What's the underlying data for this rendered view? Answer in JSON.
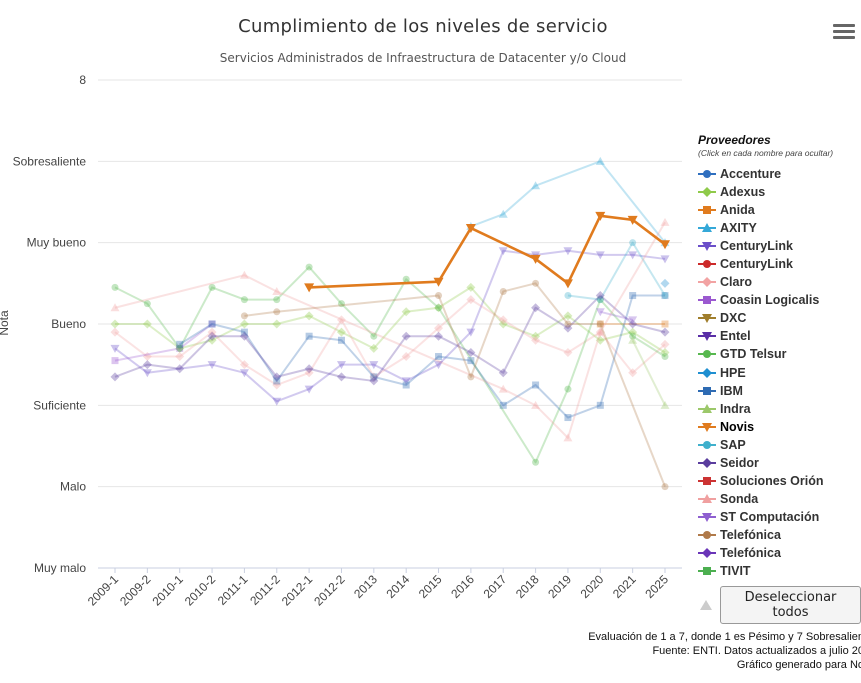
{
  "chart_title": "Cumplimiento de los niveles de servicio",
  "chart_subtitle": "Servicios Administrados de Infraestructura de Datacenter y/o Cloud",
  "menu_icon": "hamburger-menu-icon",
  "legend": {
    "title": "Proveedores",
    "subtitle": "(Click en cada nombre para ocultar)"
  },
  "deselect_button": "Deseleccionar todos",
  "footer": {
    "line1": "Evaluación de 1 a 7, donde 1 es Pésimo y 7 Sobresalien",
    "line2": "Fuente: ENTI. Datos actualizados a julio 20",
    "line3": "Gráfico generado para No"
  },
  "chart_data": {
    "type": "line",
    "ylabel": "Nota",
    "ylim": [
      1,
      7
    ],
    "ytick_labels": [
      "Muy malo",
      "Malo",
      "Suficiente",
      "Bueno",
      "Muy bueno",
      "Sobresaliente",
      "8"
    ],
    "categories": [
      "2009-1",
      "2009-2",
      "2010-1",
      "2010-2",
      "2011-1",
      "2011-2",
      "2012-1",
      "2012-2",
      "2013",
      "2014",
      "2015",
      "2016",
      "2017",
      "2018",
      "2019",
      "2020",
      "2021",
      "2025"
    ],
    "highlighted_series": "Novis",
    "series": [
      {
        "name": "Accenture",
        "color": "#2f6fbf",
        "marker": "circle",
        "values": [
          null,
          null,
          null,
          null,
          null,
          null,
          null,
          null,
          null,
          null,
          null,
          null,
          null,
          null,
          null,
          null,
          null,
          null
        ]
      },
      {
        "name": "Adexus",
        "color": "#8fca4a",
        "marker": "diamond",
        "values": [
          4.0,
          4.0,
          3.7,
          3.8,
          4.0,
          4.0,
          4.1,
          3.9,
          3.7,
          4.15,
          4.2,
          4.45,
          4.0,
          3.85,
          4.1,
          3.8,
          3.9,
          3.65
        ]
      },
      {
        "name": "Anida",
        "color": "#e07b1e",
        "marker": "square",
        "values": [
          null,
          null,
          null,
          null,
          null,
          null,
          null,
          null,
          null,
          null,
          null,
          null,
          null,
          null,
          null,
          4.0,
          null,
          4.0
        ]
      },
      {
        "name": "AXITY",
        "color": "#34a8d8",
        "marker": "triangle",
        "values": [
          null,
          null,
          null,
          null,
          null,
          null,
          null,
          null,
          null,
          null,
          null,
          5.2,
          5.35,
          5.7,
          null,
          6.0,
          null,
          5.0
        ]
      },
      {
        "name": "CenturyLink",
        "color": "#6b4fc9",
        "marker": "triangle-down",
        "values": [
          3.7,
          3.4,
          null,
          3.5,
          3.4,
          3.05,
          3.2,
          3.5,
          3.5,
          3.3,
          3.5,
          3.9,
          4.9,
          4.85,
          4.9,
          4.85,
          4.85,
          4.8
        ]
      },
      {
        "name": "CenturyLink",
        "color": "#cc2a2a",
        "marker": "circle",
        "values": [
          null,
          null,
          null,
          null,
          null,
          null,
          null,
          null,
          null,
          null,
          null,
          null,
          null,
          null,
          null,
          null,
          null,
          null
        ]
      },
      {
        "name": "Claro",
        "color": "#f2a3a3",
        "marker": "diamond",
        "values": [
          3.9,
          3.6,
          3.6,
          3.9,
          3.5,
          3.25,
          3.4,
          4.05,
          3.35,
          3.6,
          3.95,
          4.3,
          4.05,
          3.8,
          3.65,
          3.9,
          3.4,
          3.75
        ]
      },
      {
        "name": "Coasin Logicalis",
        "color": "#9b59d0",
        "marker": "square",
        "values": [
          3.55,
          null,
          3.7,
          4.0,
          null,
          null,
          null,
          null,
          null,
          null,
          null,
          null,
          null,
          null,
          null,
          null,
          null,
          null
        ]
      },
      {
        "name": "DXC",
        "color": "#a07e2c",
        "marker": "triangle-down",
        "values": [
          null,
          null,
          null,
          null,
          null,
          null,
          null,
          null,
          null,
          null,
          null,
          null,
          null,
          null,
          null,
          null,
          null,
          null
        ]
      },
      {
        "name": "Entel",
        "color": "#5a2ea6",
        "marker": "triangle-down",
        "values": [
          null,
          null,
          null,
          null,
          null,
          null,
          null,
          null,
          null,
          null,
          null,
          null,
          null,
          null,
          null,
          null,
          null,
          null
        ]
      },
      {
        "name": "GTD Telsur",
        "color": "#57b84f",
        "marker": "circle",
        "values": [
          4.45,
          4.25,
          3.7,
          4.45,
          4.3,
          4.3,
          4.7,
          4.25,
          3.85,
          4.55,
          4.2,
          null,
          null,
          2.3,
          3.2,
          4.3,
          3.85,
          3.6
        ]
      },
      {
        "name": "HPE",
        "color": "#1f8fd1",
        "marker": "diamond",
        "values": [
          null,
          null,
          null,
          null,
          null,
          null,
          null,
          null,
          null,
          null,
          null,
          null,
          null,
          null,
          null,
          null,
          null,
          4.5
        ]
      },
      {
        "name": "IBM",
        "color": "#2e6bb3",
        "marker": "square",
        "values": [
          null,
          null,
          3.75,
          4.0,
          3.9,
          3.3,
          3.85,
          3.8,
          3.35,
          3.25,
          3.6,
          3.55,
          3.0,
          3.25,
          2.85,
          3.0,
          4.35,
          4.35
        ]
      },
      {
        "name": "Indra",
        "color": "#9cc86a",
        "marker": "triangle",
        "values": [
          null,
          null,
          null,
          null,
          null,
          null,
          null,
          null,
          null,
          null,
          null,
          null,
          null,
          null,
          null,
          null,
          3.8,
          3.0
        ]
      },
      {
        "name": "Novis",
        "color": "#e07b1e",
        "marker": "triangle-down",
        "values": [
          null,
          null,
          null,
          null,
          null,
          null,
          4.45,
          null,
          null,
          null,
          4.52,
          5.18,
          null,
          4.8,
          4.5,
          5.33,
          5.28,
          4.98
        ]
      },
      {
        "name": "SAP",
        "color": "#3fb0cc",
        "marker": "circle",
        "values": [
          null,
          null,
          null,
          null,
          null,
          null,
          null,
          null,
          null,
          null,
          null,
          null,
          null,
          null,
          4.35,
          4.3,
          5.0,
          4.35
        ]
      },
      {
        "name": "Seidor",
        "color": "#5a3d9e",
        "marker": "diamond",
        "values": [
          3.35,
          3.5,
          3.45,
          3.85,
          3.85,
          3.35,
          3.45,
          3.35,
          3.3,
          3.85,
          3.85,
          3.65,
          3.4,
          4.2,
          3.95,
          4.35,
          4.0,
          3.9
        ]
      },
      {
        "name": "Soluciones Orión",
        "color": "#cc3333",
        "marker": "square",
        "values": [
          null,
          null,
          null,
          null,
          null,
          null,
          null,
          null,
          null,
          null,
          null,
          null,
          null,
          null,
          null,
          null,
          null,
          null
        ]
      },
      {
        "name": "Sonda",
        "color": "#f0a0a0",
        "marker": "triangle",
        "values": [
          4.2,
          null,
          null,
          null,
          4.6,
          4.4,
          null,
          null,
          null,
          null,
          null,
          null,
          3.2,
          3.0,
          2.6,
          3.9,
          null,
          5.25
        ]
      },
      {
        "name": "ST Computación",
        "color": "#8e5fd0",
        "marker": "triangle-down",
        "values": [
          null,
          null,
          null,
          null,
          null,
          null,
          null,
          null,
          null,
          null,
          null,
          null,
          null,
          null,
          null,
          4.15,
          4.05,
          null
        ]
      },
      {
        "name": "Telefónica",
        "color": "#b07a4a",
        "marker": "circle",
        "values": [
          null,
          null,
          null,
          null,
          4.1,
          4.15,
          null,
          null,
          null,
          null,
          4.35,
          3.35,
          4.4,
          4.5,
          4.0,
          4.0,
          null,
          2.0
        ]
      },
      {
        "name": "Telefónica",
        "color": "#6a35b8",
        "marker": "diamond",
        "values": [
          null,
          null,
          null,
          null,
          null,
          null,
          null,
          null,
          null,
          null,
          null,
          null,
          null,
          null,
          null,
          null,
          null,
          null
        ]
      },
      {
        "name": "TIVIT",
        "color": "#4caf50",
        "marker": "square",
        "values": [
          null,
          null,
          null,
          null,
          null,
          null,
          null,
          null,
          null,
          null,
          null,
          null,
          null,
          null,
          null,
          null,
          null,
          null
        ]
      }
    ]
  }
}
